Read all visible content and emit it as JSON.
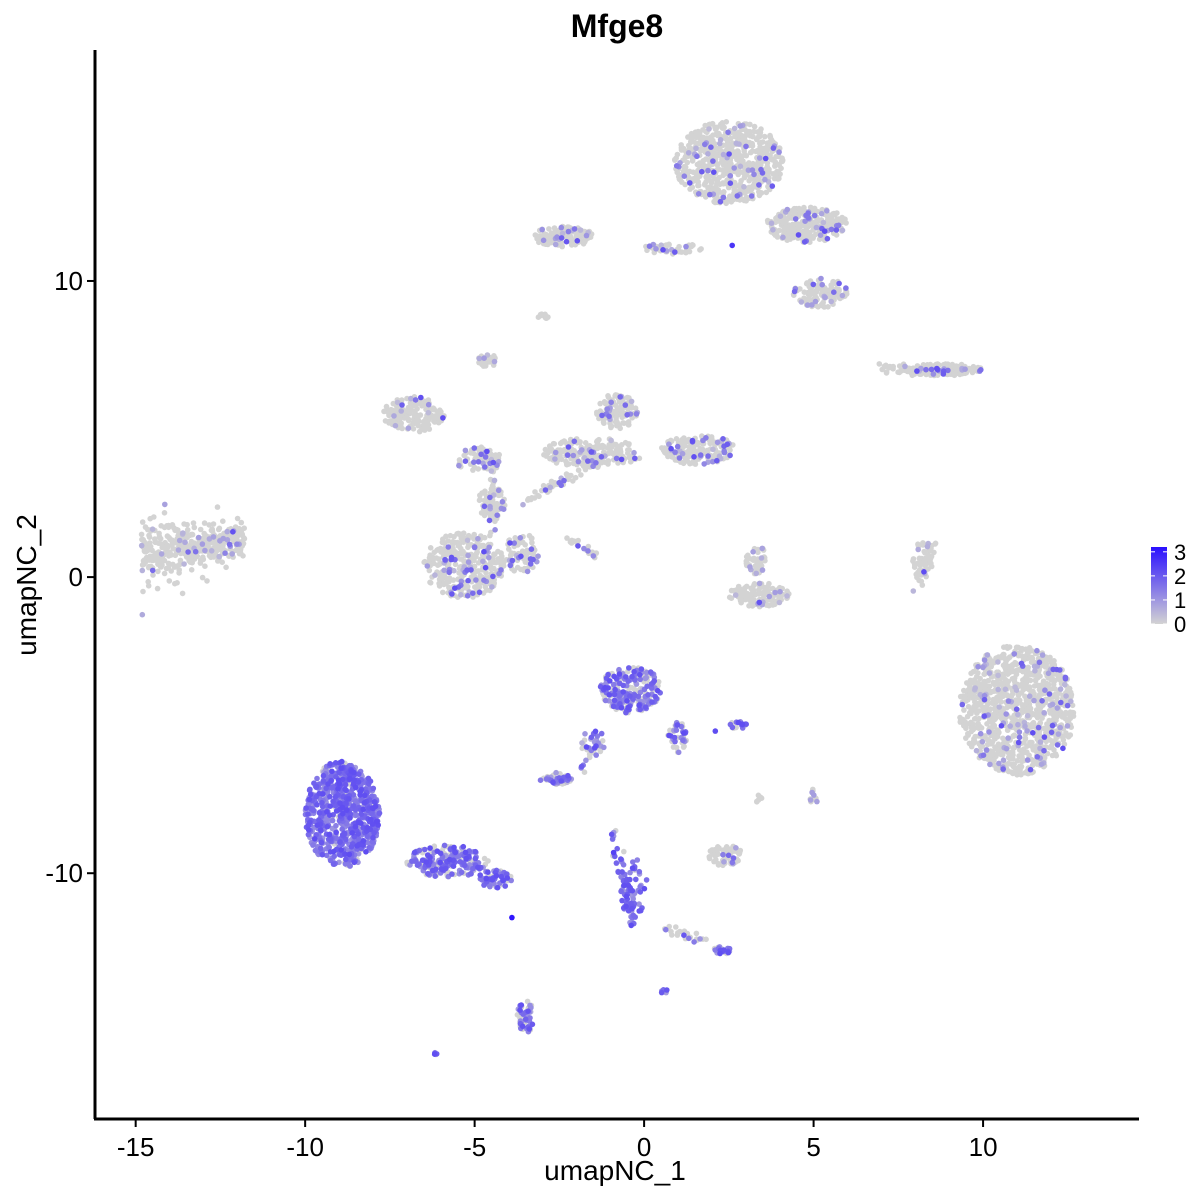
{
  "chart_data": {
    "type": "scatter",
    "title": "Mfge8",
    "xlabel": "umapNC_1",
    "ylabel": "umapNC_2",
    "xlim": [
      -16.2,
      14.6
    ],
    "ylim": [
      -18.3,
      17.8
    ],
    "xticks": [
      -15,
      -10,
      -5,
      0,
      5,
      10
    ],
    "yticks": [
      -10,
      0,
      10
    ],
    "xtick_labels": [
      "-15",
      "-10",
      "-5",
      "0",
      "5",
      "10"
    ],
    "ytick_labels": [
      "-10",
      "0",
      "10"
    ],
    "grid": false,
    "color_scale": {
      "low": "#d3d3d3",
      "high": "#2a10ff",
      "min": 0,
      "max": 3.2
    },
    "legend": {
      "position": "right",
      "labels": [
        "3",
        "2",
        "1",
        "0"
      ],
      "values": [
        3,
        2,
        1,
        0
      ]
    },
    "clusters": [
      {
        "cx": -13.3,
        "cy": 1.0,
        "rx": 1.4,
        "ry": 1.0,
        "n": 420,
        "expr": 0.03,
        "shape": "wedge"
      },
      {
        "cx": 2.5,
        "cy": 14.0,
        "rx": 1.6,
        "ry": 1.4,
        "n": 650,
        "expr": 0.05
      },
      {
        "cx": 4.8,
        "cy": 11.9,
        "rx": 1.2,
        "ry": 0.6,
        "n": 260,
        "expr": 0.06
      },
      {
        "cx": 5.2,
        "cy": 9.6,
        "rx": 0.8,
        "ry": 0.5,
        "n": 120,
        "expr": 0.1
      },
      {
        "cx": -2.4,
        "cy": 11.5,
        "rx": 0.9,
        "ry": 0.35,
        "n": 130,
        "expr": 0.08
      },
      {
        "cx": 0.8,
        "cy": 11.1,
        "rx": 0.9,
        "ry": 0.2,
        "n": 50,
        "expr": 0.08
      },
      {
        "cx": -6.8,
        "cy": 5.5,
        "rx": 0.9,
        "ry": 0.6,
        "n": 160,
        "expr": 0.04
      },
      {
        "cx": -4.9,
        "cy": 4.0,
        "rx": 0.7,
        "ry": 0.4,
        "n": 70,
        "expr": 0.18
      },
      {
        "cx": -5.3,
        "cy": 0.4,
        "rx": 1.2,
        "ry": 1.1,
        "n": 330,
        "expr": 0.08
      },
      {
        "cx": -3.6,
        "cy": 0.8,
        "rx": 0.5,
        "ry": 0.7,
        "n": 80,
        "expr": 0.22
      },
      {
        "cx": -1.5,
        "cy": 4.2,
        "rx": 1.5,
        "ry": 0.5,
        "n": 200,
        "expr": 0.05
      },
      {
        "cx": -0.8,
        "cy": 5.6,
        "rx": 0.6,
        "ry": 0.6,
        "n": 110,
        "expr": 0.1
      },
      {
        "cx": 1.6,
        "cy": 4.3,
        "rx": 1.1,
        "ry": 0.5,
        "n": 180,
        "expr": 0.08
      },
      {
        "cx": -4.5,
        "cy": 2.5,
        "rx": 0.4,
        "ry": 0.6,
        "n": 60,
        "expr": 0.06
      },
      {
        "cx": -4.6,
        "cy": 7.3,
        "rx": 0.3,
        "ry": 0.25,
        "n": 30,
        "expr": 0.02
      },
      {
        "cx": -3.0,
        "cy": 8.8,
        "rx": 0.2,
        "ry": 0.1,
        "n": 12,
        "expr": 0.02
      },
      {
        "cx": 3.4,
        "cy": -0.6,
        "rx": 0.9,
        "ry": 0.4,
        "n": 120,
        "expr": 0.03
      },
      {
        "cx": 3.3,
        "cy": 0.6,
        "rx": 0.3,
        "ry": 0.5,
        "n": 40,
        "expr": 0.02
      },
      {
        "cx": 8.8,
        "cy": 7.0,
        "rx": 1.2,
        "ry": 0.2,
        "n": 150,
        "expr": 0.06
      },
      {
        "cx": 8.2,
        "cy": 0.5,
        "rx": 0.3,
        "ry": 0.7,
        "n": 40,
        "expr": 0.03
      },
      {
        "cx": 11.0,
        "cy": -4.5,
        "rx": 1.7,
        "ry": 2.2,
        "n": 1000,
        "expr": 0.05
      },
      {
        "cx": -8.9,
        "cy": -8.0,
        "rx": 1.1,
        "ry": 1.8,
        "n": 700,
        "expr": 0.9
      },
      {
        "cx": -5.8,
        "cy": -9.6,
        "rx": 1.2,
        "ry": 0.55,
        "n": 200,
        "expr": 0.65
      },
      {
        "cx": -4.4,
        "cy": -10.2,
        "rx": 0.5,
        "ry": 0.3,
        "n": 60,
        "expr": 0.7
      },
      {
        "cx": -0.4,
        "cy": -3.8,
        "rx": 0.9,
        "ry": 0.8,
        "n": 240,
        "expr": 0.55
      },
      {
        "cx": 1.0,
        "cy": -5.4,
        "rx": 0.3,
        "ry": 0.6,
        "n": 40,
        "expr": 0.6
      },
      {
        "cx": -2.6,
        "cy": -6.8,
        "rx": 0.5,
        "ry": 0.2,
        "n": 45,
        "expr": 0.35
      },
      {
        "cx": -1.5,
        "cy": -5.6,
        "rx": 0.4,
        "ry": 0.4,
        "n": 25,
        "expr": 0.5
      },
      {
        "cx": 2.8,
        "cy": -5.0,
        "rx": 0.3,
        "ry": 0.12,
        "n": 16,
        "expr": 0.8
      },
      {
        "cx": 2.4,
        "cy": -9.4,
        "rx": 0.5,
        "ry": 0.35,
        "n": 70,
        "expr": 0.06
      },
      {
        "cx": 5.0,
        "cy": -7.4,
        "rx": 0.15,
        "ry": 0.25,
        "n": 12,
        "expr": 0.02
      },
      {
        "cx": 3.4,
        "cy": -7.5,
        "rx": 0.1,
        "ry": 0.15,
        "n": 6,
        "expr": 0.1
      },
      {
        "cx": -0.3,
        "cy": -10.6,
        "rx": 0.4,
        "ry": 1.2,
        "n": 60,
        "expr": 0.95
      },
      {
        "cx": 2.3,
        "cy": -12.6,
        "rx": 0.3,
        "ry": 0.12,
        "n": 25,
        "expr": 0.6
      },
      {
        "cx": -3.5,
        "cy": -14.8,
        "rx": 0.25,
        "ry": 0.6,
        "n": 50,
        "expr": 0.55
      },
      {
        "cx": 0.6,
        "cy": -14.0,
        "rx": 0.1,
        "ry": 0.1,
        "n": 6,
        "expr": 0.7
      },
      {
        "cx": -6.1,
        "cy": -16.1,
        "rx": 0.1,
        "ry": 0.08,
        "n": 5,
        "expr": 0.9
      }
    ],
    "bridges": [
      {
        "x1": -3.5,
        "y1": 2.5,
        "x2": -1.0,
        "y2": 4.2,
        "n": 60,
        "expr": 0.05
      },
      {
        "x1": -2.2,
        "y1": 1.3,
        "x2": -1.4,
        "y2": 0.7,
        "n": 18,
        "expr": 0.4
      },
      {
        "x1": -4.5,
        "y1": 1.5,
        "x2": -4.5,
        "y2": 4.0,
        "n": 40,
        "expr": 0.05
      },
      {
        "x1": -0.9,
        "y1": -8.6,
        "x2": -0.4,
        "y2": -11.5,
        "n": 35,
        "expr": 0.85
      },
      {
        "x1": 0.5,
        "y1": -11.8,
        "x2": 2.2,
        "y2": -12.5,
        "n": 25,
        "expr": 0.15
      },
      {
        "x1": -1.8,
        "y1": -6.5,
        "x2": -1.2,
        "y2": -5.3,
        "n": 15,
        "expr": 0.5
      },
      {
        "x1": 7.0,
        "y1": 7.1,
        "x2": 8.0,
        "y2": 6.9,
        "n": 25,
        "expr": 0.03
      },
      {
        "x1": 8.0,
        "y1": -0.5,
        "x2": 8.5,
        "y2": 1.2,
        "n": 25,
        "expr": 0.03
      }
    ],
    "highlights": [
      {
        "x": -3.9,
        "y": -11.5,
        "value": 3.1
      },
      {
        "x": -0.9,
        "y": -9.3,
        "value": 2.4
      },
      {
        "x": 2.6,
        "y": 11.2,
        "value": 2.6
      },
      {
        "x": 2.1,
        "y": -5.2,
        "value": 2.2
      }
    ]
  }
}
